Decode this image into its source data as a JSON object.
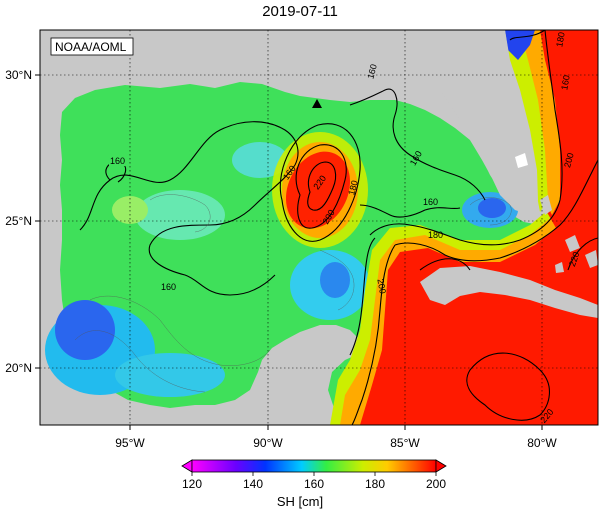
{
  "title": "2019-07-11",
  "source_label": "NOAA/AOML",
  "lon_ticks": [
    "95°W",
    "90°W",
    "85°W",
    "80°W"
  ],
  "lat_ticks": [
    "30°N",
    "25°N",
    "20°N"
  ],
  "contour_labels": {
    "c1": "160",
    "c2": "160",
    "c3": "160",
    "c4": "160",
    "c5": "160",
    "c6": "160",
    "c7": "220",
    "c8": "200",
    "c9": "180",
    "c10": "180",
    "c11": "200",
    "c12": "200",
    "c13": "220",
    "c14": "220",
    "c15": "180",
    "c16": "160"
  },
  "colorbar": {
    "ticks": [
      "120",
      "140",
      "160",
      "180",
      "200"
    ],
    "unit": "SH [cm]",
    "min": 120,
    "max": 200
  },
  "colors": {
    "land": "#c8c8c8",
    "ocean_low": "#2a5cff",
    "ocean_mid": "#33dd55",
    "ocean_high": "#ff1a00"
  }
}
